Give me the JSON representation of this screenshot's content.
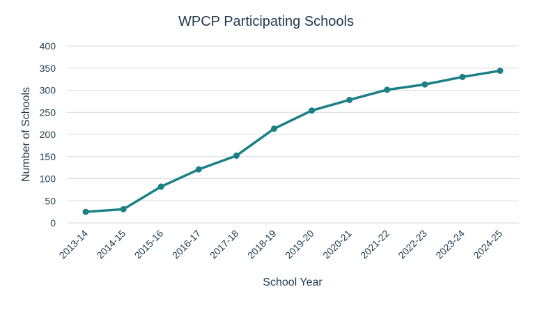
{
  "chart_data": {
    "type": "line",
    "title": "WPCP Participating Schools",
    "xlabel": "School Year",
    "ylabel": "Number of Schools",
    "categories": [
      "2013-14",
      "2014-15",
      "2015-16",
      "2016-17",
      "2017-18",
      "2018-19",
      "2019-20",
      "2020-21",
      "2021-22",
      "2022-23",
      "2023-24",
      "2024-25"
    ],
    "series": [
      {
        "values": [
          25,
          31,
          82,
          121,
          152,
          213,
          254,
          278,
          301,
          313,
          330,
          344
        ]
      }
    ],
    "ylim": [
      0,
      400
    ],
    "yticks": [
      0,
      50,
      100,
      150,
      200,
      250,
      300,
      350,
      400
    ],
    "grid": true,
    "legend": "none",
    "colors": {
      "line": "#1b7f86",
      "grid": "#d9d9d9",
      "text": "#1f3a4d"
    }
  }
}
